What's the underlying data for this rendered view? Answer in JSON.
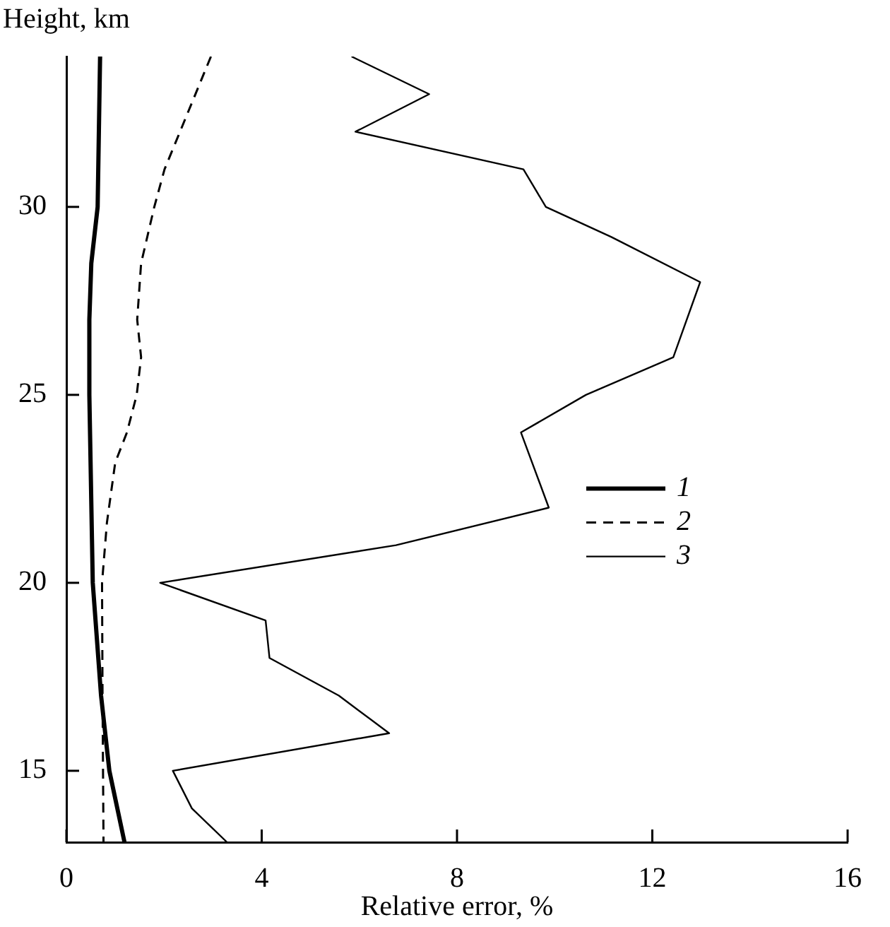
{
  "chart_data": {
    "type": "line",
    "xlabel": "Relative error, %",
    "ylabel": "Height, km",
    "xlim": [
      0,
      16
    ],
    "xticks": [
      0,
      4,
      8,
      12,
      16
    ],
    "ylim": [
      13.1,
      34
    ],
    "yticks": [
      15,
      20,
      25,
      30
    ],
    "grid": false,
    "legend": "right",
    "marker": "none",
    "series": [
      {
        "name": "1",
        "color": "#000000",
        "line_style": "solid",
        "x": [
          0.69,
          0.64,
          0.51,
          0.47,
          0.47,
          0.54,
          0.71,
          0.88,
          1.19
        ],
        "values": [
          34,
          30,
          28.5,
          27,
          25,
          20,
          17,
          15,
          13.1
        ]
      },
      {
        "name": "2",
        "color": "#000000",
        "line_style": "dashed",
        "x": [
          2.96,
          2.01,
          1.8,
          1.53,
          1.45,
          1.53,
          1.44,
          1.24,
          1.0,
          0.83,
          0.73,
          0.74,
          0.76
        ],
        "values": [
          34,
          31,
          30,
          28.5,
          27,
          26,
          25,
          24,
          23.2,
          21.6,
          20,
          17,
          13.1
        ]
      },
      {
        "name": "3",
        "color": "#000000",
        "line_style": "solid",
        "x": [
          5.84,
          7.43,
          5.92,
          9.36,
          9.82,
          11.16,
          12.98,
          12.43,
          10.64,
          9.31,
          9.88,
          6.75,
          1.92,
          4.08,
          4.16,
          5.58,
          6.61,
          2.18,
          2.57,
          3.29
        ],
        "values": [
          34,
          33,
          32,
          31,
          30,
          29.2,
          28,
          26,
          25,
          24,
          22,
          21,
          20,
          19,
          18,
          17,
          16,
          15,
          14,
          13.1
        ]
      }
    ]
  }
}
